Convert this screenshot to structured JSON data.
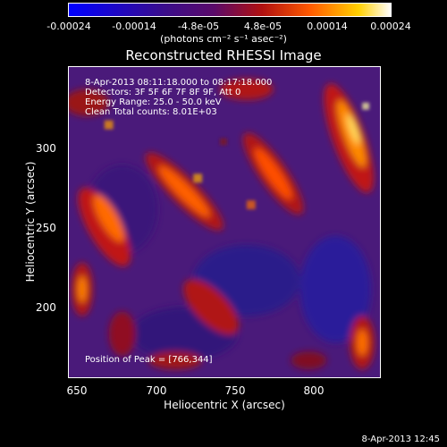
{
  "colorbar": {
    "ticks": [
      "-0.00024",
      "-0.00014",
      "-4.8e-05",
      "4.8e-05",
      "0.00014",
      "0.00024"
    ],
    "unit": "(photons cm⁻² s⁻¹ asec⁻²)"
  },
  "title": "Reconstructed RHESSI Image",
  "annotations": {
    "time_range": "8-Apr-2013 08:11:18.000 to 08:17:18.000",
    "detectors": "Detectors: 3F 5F 6F 7F 8F 9F, Att 0",
    "energy": "Energy Range: 25.0 - 50.0 keV",
    "method": "Clean     Total counts: 8.01E+03",
    "peak": "Position of Peak = [766,344]"
  },
  "axes": {
    "xlabel": "Heliocentric X (arcsec)",
    "ylabel": "Heliocentric Y (arcsec)",
    "xticks": [
      "650",
      "700",
      "750",
      "800"
    ],
    "yticks": [
      "300",
      "250",
      "200"
    ]
  },
  "timestamp": "8-Apr-2013 12:45"
}
